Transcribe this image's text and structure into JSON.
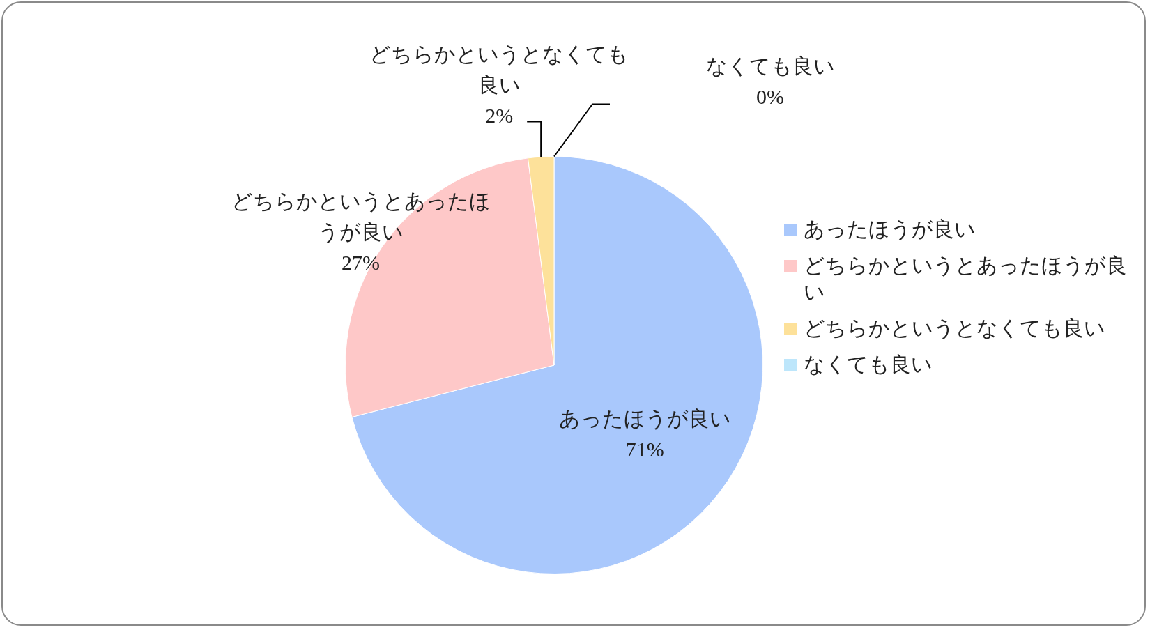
{
  "chart_data": {
    "type": "pie",
    "categories": [
      "あったほうが良い",
      "どちらかというとあったほうが良い",
      "どちらかというとなくても良い",
      "なくても良い"
    ],
    "values": [
      71,
      27,
      2,
      0
    ],
    "colors": [
      "#a9c8fc",
      "#fec8c8",
      "#fde19a",
      "#bde6fb"
    ],
    "value_labels": [
      "71%",
      "27%",
      "2%",
      "0%"
    ],
    "legend": "right"
  }
}
